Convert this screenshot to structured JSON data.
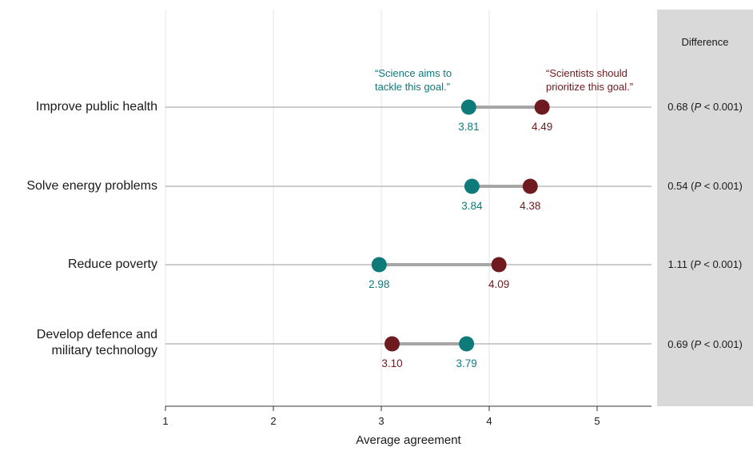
{
  "chart_data": {
    "type": "dumbbell",
    "xlabel": "Average agreement",
    "xlim": [
      1,
      5.5
    ],
    "xticks": [
      1,
      2,
      3,
      4,
      5
    ],
    "grid": true,
    "colors": {
      "tackle": "#0f7a7a",
      "prioritize": "#6e1a1e",
      "connector": "#a6a6a6"
    },
    "series": [
      {
        "name": "“Science aims to tackle this goal.”",
        "key": "tackle"
      },
      {
        "name": "“Scientists should prioritize this goal.”",
        "key": "prioritize"
      }
    ],
    "rows": [
      {
        "category": "Improve public health",
        "tackle": 3.81,
        "prioritize": 4.49,
        "tackle_label": "3.81",
        "prioritize_label": "4.49",
        "diff_value": "0.68",
        "diff_p": "P",
        "diff_rest": " < 0.001)"
      },
      {
        "category": "Solve energy problems",
        "tackle": 3.84,
        "prioritize": 4.38,
        "tackle_label": "3.84",
        "prioritize_label": "4.38",
        "diff_value": "0.54",
        "diff_p": "P",
        "diff_rest": " < 0.001)"
      },
      {
        "category": "Reduce poverty",
        "tackle": 2.98,
        "prioritize": 4.09,
        "tackle_label": "2.98",
        "prioritize_label": "4.09",
        "diff_value": "1.11",
        "diff_p": "P",
        "diff_rest": " < 0.001)"
      },
      {
        "category_lines": [
          "Develop defence and",
          "military technology"
        ],
        "tackle": 3.79,
        "prioritize": 3.1,
        "tackle_label": "3.79",
        "prioritize_label": "3.10",
        "diff_value": "0.69",
        "diff_p": "P",
        "diff_rest": " < 0.001)"
      }
    ],
    "diff_title": "Difference",
    "notes": {
      "tackle_lines": [
        "“Science aims to",
        "tackle this goal.”"
      ],
      "prioritize_lines": [
        "“Scientists should",
        "prioritize this goal.”"
      ]
    }
  }
}
